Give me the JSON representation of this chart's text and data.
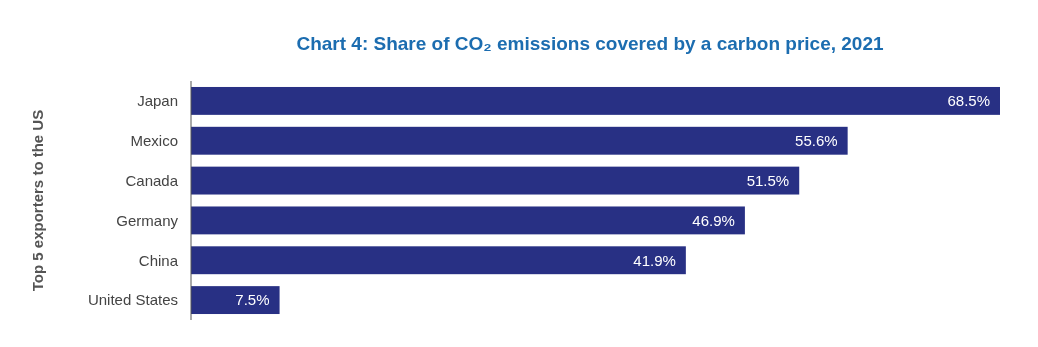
{
  "chart_data": {
    "type": "bar",
    "orientation": "horizontal",
    "title": "Chart 4: Share of CO₂ emissions covered by a carbon price, 2021",
    "ylabel": "Top 5 exporters to the US",
    "categories": [
      "Japan",
      "Mexico",
      "Canada",
      "Germany",
      "China",
      "United States"
    ],
    "values": [
      68.5,
      55.6,
      51.5,
      46.9,
      41.9,
      7.5
    ],
    "value_labels": [
      "68.5%",
      "55.6%",
      "51.5%",
      "46.9%",
      "41.9%",
      "7.5%"
    ],
    "color": "#283084"
  }
}
